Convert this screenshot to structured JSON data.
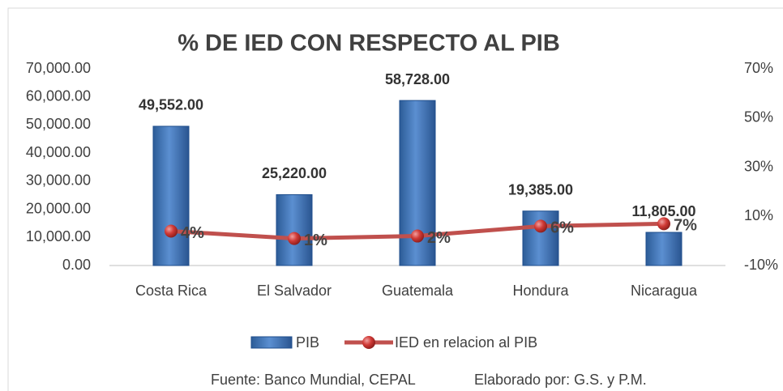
{
  "chart_data": {
    "type": "bar",
    "title": "% DE IED CON RESPECTO AL PIB",
    "categories": [
      "Costa Rica",
      "El Salvador",
      "Guatemala",
      "Hondura",
      "Nicaragua"
    ],
    "series": [
      {
        "name": "PIB",
        "type": "bar",
        "color": "#4f81bd",
        "values": [
          49552,
          25220,
          58728,
          19385,
          11805
        ],
        "value_labels": [
          "49,552.00",
          "25,220.00",
          "58,728.00",
          "19,385.00",
          "11,805.00"
        ]
      },
      {
        "name": "IED en relacion al PIB",
        "type": "line",
        "axis": "y2",
        "color": "#c0504d",
        "values": [
          4,
          1,
          2,
          6,
          7
        ],
        "value_labels": [
          "4%",
          "1%",
          "2%",
          "6%",
          "7%"
        ]
      }
    ],
    "ylim": [
      0,
      70000
    ],
    "yticks": [
      {
        "value": 0,
        "label": "0.00"
      },
      {
        "value": 10000,
        "label": "10,000.00"
      },
      {
        "value": 20000,
        "label": "20,000.00"
      },
      {
        "value": 30000,
        "label": "30,000.00"
      },
      {
        "value": 40000,
        "label": "40,000.00"
      },
      {
        "value": 50000,
        "label": "50,000.00"
      },
      {
        "value": 60000,
        "label": "60,000.00"
      },
      {
        "value": 70000,
        "label": "70,000.00"
      }
    ],
    "y2lim": [
      -10,
      70
    ],
    "y2ticks": [
      {
        "value": -10,
        "label": "-10%"
      },
      {
        "value": 10,
        "label": "10%"
      },
      {
        "value": 30,
        "label": "30%"
      },
      {
        "value": 50,
        "label": "50%"
      },
      {
        "value": 70,
        "label": "70%"
      }
    ],
    "legend": "bottom",
    "source": "Fuente: Banco Mundial, CEPAL",
    "credit": "Elaborado por: G.S. y P.M."
  }
}
